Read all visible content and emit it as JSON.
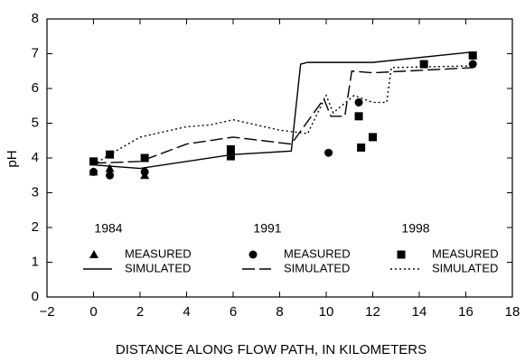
{
  "chart_data": {
    "type": "line",
    "xlabel": "DISTANCE ALONG FLOW PATH, IN KILOMETERS",
    "ylabel": "pH",
    "xlim": [
      -2,
      18
    ],
    "xticks": [
      {
        "value": -2,
        "label": "−2"
      },
      0,
      2,
      4,
      6,
      8,
      10,
      12,
      14,
      16,
      18
    ],
    "ylim": [
      0,
      8
    ],
    "yticks": [
      0,
      1,
      2,
      3,
      4,
      5,
      6,
      7,
      8
    ],
    "color": "#000000",
    "groups": [
      {
        "title": "1984",
        "series": [
          {
            "name": "MEASURED",
            "marker": "triangle",
            "x": [
              0,
              0.7,
              2.2
            ],
            "values": [
              3.6,
              3.7,
              3.5
            ]
          },
          {
            "name": "SIMULATED",
            "style": "solid",
            "x": [
              0,
              2,
              6,
              8.5,
              8.9,
              9.2,
              12,
              16.3
            ],
            "values": [
              3.8,
              3.7,
              4.1,
              4.2,
              6.7,
              6.75,
              6.75,
              7.05
            ]
          }
        ]
      },
      {
        "title": "1991",
        "series": [
          {
            "name": "MEASURED",
            "marker": "circle",
            "x": [
              0,
              0.7,
              2.2,
              10.1,
              11.4,
              16.3
            ],
            "values": [
              3.6,
              3.5,
              3.6,
              4.15,
              5.6,
              6.7
            ]
          },
          {
            "name": "SIMULATED",
            "style": "dashed",
            "x": [
              0,
              2,
              4,
              6,
              8.5,
              9.9,
              10.2,
              10.8,
              11.1,
              12,
              16.3
            ],
            "values": [
              3.85,
              3.9,
              4.4,
              4.6,
              4.4,
              5.7,
              5.2,
              5.2,
              6.5,
              6.45,
              6.6
            ]
          }
        ]
      },
      {
        "title": "1998",
        "series": [
          {
            "name": "MEASURED",
            "marker": "square",
            "x": [
              0,
              0.7,
              2.2,
              5.9,
              5.9,
              11.4,
              11.5,
              12,
              14.2,
              16.3
            ],
            "values": [
              3.9,
              4.1,
              4.0,
              4.25,
              4.05,
              5.2,
              4.3,
              4.6,
              6.7,
              6.95
            ]
          },
          {
            "name": "SIMULATED",
            "style": "dotted",
            "x": [
              0,
              0.7,
              2,
              4,
              5,
              6,
              8,
              9.2,
              10,
              10.3,
              11.2,
              12,
              12.6,
              12.8,
              16.3
            ],
            "values": [
              3.8,
              4.1,
              4.6,
              4.9,
              4.95,
              5.1,
              4.8,
              4.7,
              5.8,
              5.3,
              5.8,
              5.6,
              5.6,
              6.6,
              6.65
            ]
          }
        ]
      }
    ]
  }
}
